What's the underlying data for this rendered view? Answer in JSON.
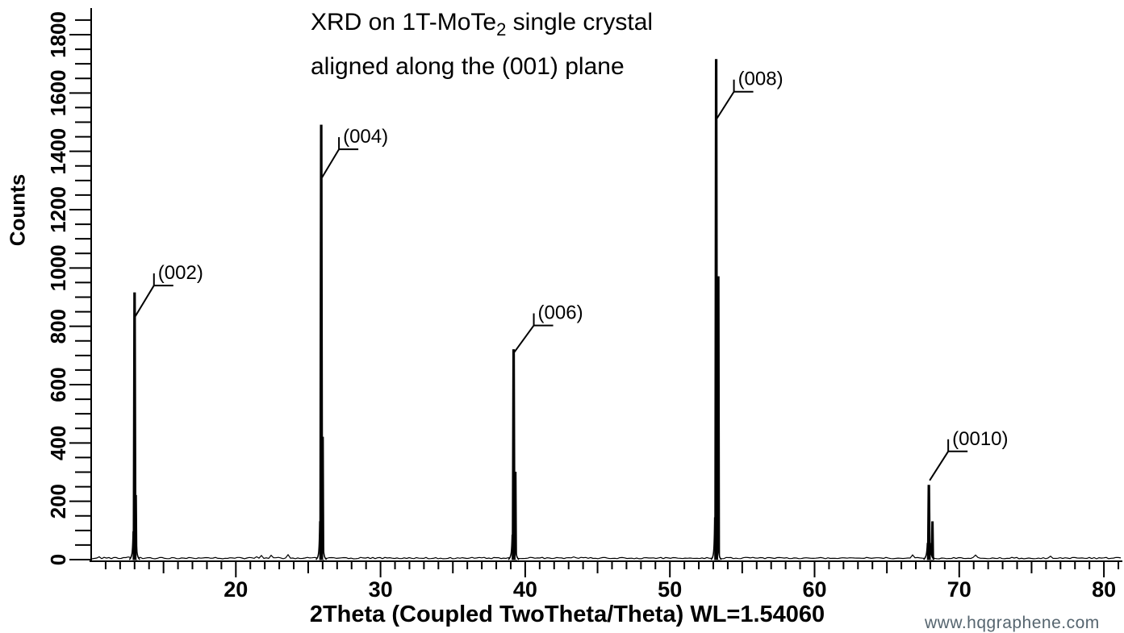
{
  "figure": {
    "title": {
      "line1_pre": "XRD on 1T-MoTe",
      "line1_sub": "2",
      "line1_post": " single crystal",
      "line2": "aligned along the (001) plane"
    },
    "x_axis_title": "2Theta (Coupled TwoTheta/Theta) WL=1.54060",
    "y_axis_title": "Counts",
    "watermark": "www.hqgraphene.com",
    "colors": {
      "foreground": "#000000",
      "background": "#ffffff",
      "watermark": "#56656f"
    }
  },
  "chart_data": {
    "type": "line",
    "title": "XRD on 1T-MoTe2 single crystal aligned along the (001) plane",
    "xlabel": "2Theta (Coupled TwoTheta/Theta) WL=1.54060",
    "ylabel": "Counts",
    "xlim": [
      10,
      81.3
    ],
    "ylim": [
      0,
      1870
    ],
    "grid": false,
    "legend": "none",
    "x_major_ticks": [
      20,
      30,
      40,
      50,
      60,
      70,
      80
    ],
    "x_medium_tick_step": 5,
    "x_minor_tick_step": 1,
    "y_major_ticks": [
      0,
      200,
      400,
      600,
      800,
      1000,
      1200,
      1400,
      1600,
      1800
    ],
    "y_minor_tick_step": 50,
    "noise_baseline_counts": 5,
    "peaks": [
      {
        "label": "(002)",
        "two_theta": 13.0,
        "intensity": 915,
        "ka2_offset": 0.08,
        "ka2_intensity": 220,
        "ann": {
          "jdx": 24,
          "jdy": -9,
          "attach_dy": 29
        }
      },
      {
        "label": "(004)",
        "two_theta": 25.9,
        "intensity": 1490,
        "ka2_offset": 0.1,
        "ka2_intensity": 420,
        "ann": {
          "jdx": 22,
          "jdy": 30,
          "attach_dy": 65
        }
      },
      {
        "label": "(006)",
        "two_theta": 39.2,
        "intensity": 720,
        "ka2_offset": 0.12,
        "ka2_intensity": 300,
        "ann": {
          "jdx": 25,
          "jdy": -30,
          "attach_dy": 3
        }
      },
      {
        "label": "(008)",
        "two_theta": 53.2,
        "intensity": 1715,
        "ka2_offset": 0.15,
        "ka2_intensity": 970,
        "ann": {
          "jdx": 22,
          "jdy": 40,
          "attach_dy": 73
        }
      },
      {
        "label": "(0010)",
        "two_theta": 67.9,
        "intensity": 255,
        "ka2_offset": 0.25,
        "ka2_intensity": 130,
        "ann": {
          "jdx": 24,
          "jdy": -42,
          "attach_dy": -6
        }
      }
    ]
  }
}
